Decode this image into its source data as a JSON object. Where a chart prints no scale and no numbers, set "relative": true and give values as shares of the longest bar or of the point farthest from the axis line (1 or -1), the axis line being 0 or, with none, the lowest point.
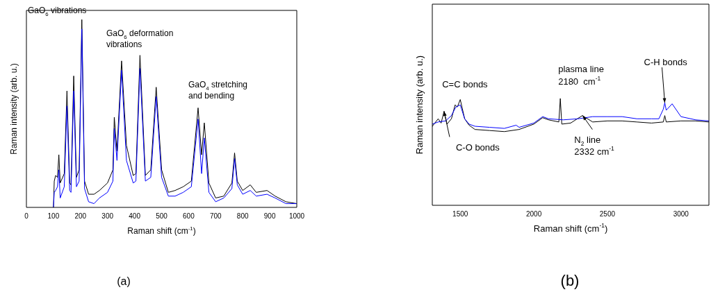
{
  "chart_data": [
    {
      "type": "line",
      "relative": true,
      "xlabel": "Raman shift (cm$^{-1}$)",
      "ylabel": "Raman intensity (arb. u.)",
      "xlim": [
        0,
        1000
      ],
      "xticks": [
        0,
        100,
        200,
        300,
        400,
        500,
        600,
        700,
        800,
        900,
        1000
      ],
      "tick_labels": "x",
      "marker": "none",
      "x": [
        100,
        103,
        108,
        115,
        120,
        125,
        140,
        150,
        160,
        165,
        175,
        185,
        195,
        205,
        215,
        230,
        250,
        270,
        300,
        320,
        325,
        335,
        352,
        370,
        395,
        405,
        420,
        440,
        460,
        480,
        500,
        525,
        550,
        580,
        610,
        635,
        648,
        658,
        675,
        700,
        730,
        760,
        770,
        780,
        800,
        828,
        850,
        890,
        920,
        960,
        1000
      ],
      "series": [
        {
          "color": "#000000",
          "values": [
            0,
            0.14,
            0.17,
            0.16,
            0.28,
            0.13,
            0.18,
            0.62,
            0.13,
            0.12,
            0.7,
            0.16,
            0.2,
            1,
            0.14,
            0.07,
            0.07,
            0.09,
            0.13,
            0.2,
            0.48,
            0.3,
            0.78,
            0.33,
            0.17,
            0.18,
            0.81,
            0.17,
            0.2,
            0.64,
            0.2,
            0.08,
            0.09,
            0.11,
            0.14,
            0.53,
            0.28,
            0.45,
            0.13,
            0.05,
            0.06,
            0.13,
            0.29,
            0.14,
            0.09,
            0.12,
            0.08,
            0.09,
            0.06,
            0.03,
            0.02
          ]
        },
        {
          "color": "#0000ff",
          "values": [
            0,
            0.08,
            0.09,
            0.11,
            0.2,
            0.05,
            0.11,
            0.54,
            0.09,
            0.08,
            0.62,
            0.11,
            0.14,
            0.95,
            0.1,
            0.03,
            0.02,
            0.05,
            0.08,
            0.14,
            0.42,
            0.25,
            0.73,
            0.25,
            0.13,
            0.14,
            0.74,
            0.14,
            0.16,
            0.59,
            0.16,
            0.06,
            0.06,
            0.08,
            0.11,
            0.47,
            0.18,
            0.37,
            0.08,
            0.03,
            0.05,
            0.1,
            0.26,
            0.12,
            0.07,
            0.09,
            0.06,
            0.07,
            0.05,
            0.02,
            0.02
          ]
        }
      ],
      "annotations": [
        "GaO$_{6}$ vibrations",
        "GaO$_{6}$ deformation\nvibrations",
        "GaO$_{4}$ stretching\nand bending",
        "(a)"
      ]
    },
    {
      "type": "line",
      "relative": true,
      "xlabel": "Raman shift (cm$^{-1}$)",
      "ylabel": "Raman intensity (arb. u.)",
      "xlim": [
        1310,
        3190
      ],
      "xticks": [
        1500,
        2000,
        2500,
        3000
      ],
      "tick_labels": "x",
      "marker": "none",
      "series": [
        {
          "color": "#000000",
          "x": [
            1310,
            1350,
            1370,
            1390,
            1410,
            1440,
            1465,
            1480,
            1500,
            1530,
            1560,
            1600,
            1700,
            1800,
            1900,
            2000,
            2060,
            2100,
            2170,
            2180,
            2190,
            2250,
            2330,
            2400,
            2500,
            2600,
            2700,
            2800,
            2880,
            2890,
            2900,
            3000,
            3100,
            3190
          ],
          "values": [
            0.74,
            0.81,
            0.77,
            0.88,
            0.76,
            0.81,
            0.94,
            0.92,
            0.99,
            0.81,
            0.75,
            0.71,
            0.7,
            0.69,
            0.71,
            0.76,
            0.82,
            0.8,
            0.78,
            1,
            0.76,
            0.77,
            0.84,
            0.78,
            0.79,
            0.79,
            0.78,
            0.77,
            0.78,
            0.84,
            0.78,
            0.79,
            0.79,
            0.78
          ]
        },
        {
          "color": "#0000ff",
          "x": [
            1310,
            1350,
            1400,
            1440,
            1470,
            1500,
            1530,
            1560,
            1600,
            1700,
            1800,
            1880,
            1900,
            2000,
            2060,
            2100,
            2200,
            2300,
            2400,
            2500,
            2600,
            2700,
            2800,
            2850,
            2880,
            2890,
            2900,
            2940,
            2980,
            3000,
            3100,
            3190
          ],
          "values": [
            0.76,
            0.78,
            0.79,
            0.84,
            0.92,
            0.94,
            0.81,
            0.76,
            0.74,
            0.73,
            0.72,
            0.75,
            0.73,
            0.77,
            0.83,
            0.81,
            0.8,
            0.81,
            0.83,
            0.83,
            0.83,
            0.81,
            0.81,
            0.81,
            0.9,
            0.96,
            0.89,
            0.95,
            0.87,
            0.83,
            0.8,
            0.79
          ]
        }
      ],
      "annotations": [
        {
          "text": "C=C bonds",
          "x": 1500,
          "y": 0.99
        },
        {
          "text": "plasma line\n2180  cm$^{-1}$",
          "x": 2180,
          "y": 1
        },
        {
          "text": "C-O bonds",
          "x": 1390,
          "y": 0.88
        },
        {
          "text": "N$_{2}$ line\n2332 cm$^{-1}$",
          "x": 2332,
          "y": 0.84
        },
        {
          "text": "C-H bonds",
          "x": 2890,
          "y": 0.96
        },
        "(b)"
      ]
    }
  ]
}
